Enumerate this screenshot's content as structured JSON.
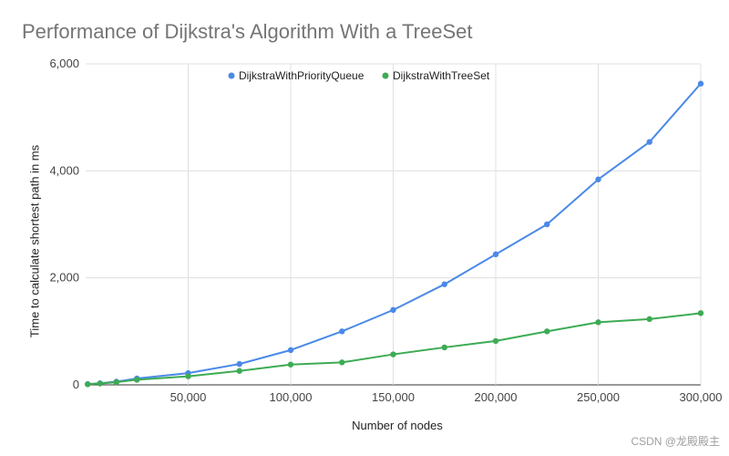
{
  "chart_data": {
    "type": "line",
    "title": "Performance of Dijkstra's Algorithm With a TreeSet",
    "xlabel": "Number of nodes",
    "ylabel": "Time to calculate shortest path in ms",
    "xlim": [
      0,
      300000
    ],
    "ylim": [
      0,
      6000
    ],
    "x_ticks": [
      50000,
      100000,
      150000,
      200000,
      250000,
      300000
    ],
    "x_tick_labels": [
      "50,000",
      "100,000",
      "150,000",
      "200,000",
      "250,000",
      "300,000"
    ],
    "y_ticks": [
      0,
      2000,
      4000,
      6000
    ],
    "y_tick_labels": [
      "0",
      "2,000",
      "4,000",
      "6,000"
    ],
    "grid": true,
    "legend_position": "top-center",
    "x": [
      1000,
      7000,
      15000,
      25000,
      50000,
      75000,
      100000,
      125000,
      150000,
      175000,
      200000,
      225000,
      250000,
      275000,
      300000
    ],
    "series": [
      {
        "name": "DijkstraWithPriorityQueue",
        "color": "#4a89e8",
        "values": [
          15,
          30,
          60,
          120,
          220,
          390,
          650,
          1000,
          1400,
          1880,
          2440,
          3000,
          3840,
          4540,
          5630
        ]
      },
      {
        "name": "DijkstraWithTreeSet",
        "color": "#3dab54",
        "values": [
          10,
          25,
          50,
          95,
          160,
          260,
          380,
          420,
          570,
          700,
          820,
          1000,
          1170,
          1230,
          1340
        ]
      }
    ]
  },
  "watermark": "CSDN @龙殿殿主"
}
